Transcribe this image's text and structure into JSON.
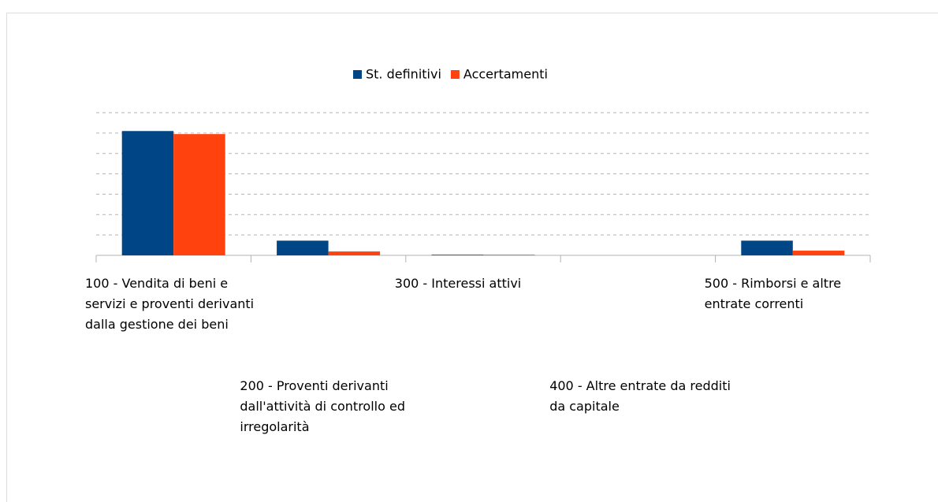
{
  "chart_data": {
    "type": "bar",
    "categories": [
      "100 - Vendita di beni e servizi e proventi derivanti dalla gestione dei beni",
      "200 - Proventi derivanti dall'attività di controllo ed irregolarità",
      "300 - Interessi attivi",
      "400 - Altre entrate da redditi da capitale",
      "500 - Rimborsi e altre entrate correnti"
    ],
    "series": [
      {
        "name": "St. definitivi",
        "color": "#004586",
        "values": [
          6.1,
          0.72,
          0.03,
          0,
          0.72
        ]
      },
      {
        "name": "Accertamenti",
        "color": "#ff420e",
        "values": [
          5.95,
          0.19,
          0.03,
          0,
          0.23
        ]
      }
    ],
    "ylim": [
      0,
      7
    ],
    "yticks": [
      0,
      1,
      2,
      3,
      4,
      5,
      6,
      7
    ],
    "grid": true,
    "legend": "top"
  }
}
